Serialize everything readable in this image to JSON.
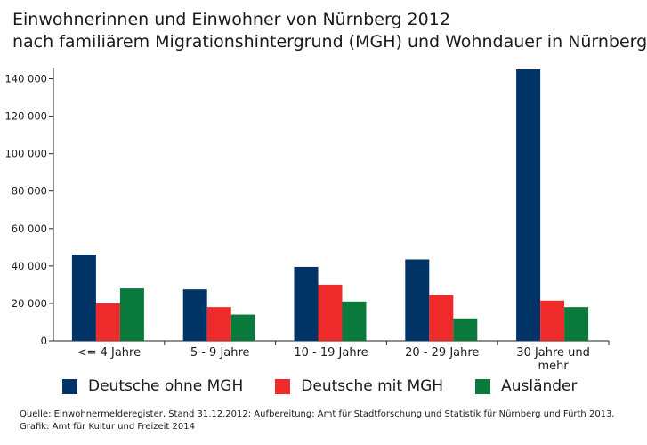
{
  "title_line1": "Einwohnerinnen und Einwohner von Nürnberg 2012",
  "title_line2": "nach familiärem Migrationshintergrund (MGH) und Wohndauer in Nürnberg",
  "source_line1": "Quelle: Einwohnermelderegister, Stand 31.12.2012; Aufbereitung: Amt für Stadtforschung und Statistik für Nürnberg und Fürth 2013,",
  "source_line2": "Grafik: Amt für Kultur und Freizeit 2014",
  "chart_data": {
    "type": "bar",
    "title": "Einwohnerinnen und Einwohner von Nürnberg 2012 nach familiärem Migrationshintergrund (MGH) und Wohndauer in Nürnberg",
    "categories": [
      "<= 4 Jahre",
      "5 - 9 Jahre",
      "10 - 19 Jahre",
      "20 - 29 Jahre",
      "30 Jahre und mehr"
    ],
    "category_lines": [
      [
        "<= 4 Jahre"
      ],
      [
        "5 - 9 Jahre"
      ],
      [
        "10 - 19 Jahre"
      ],
      [
        "20 - 29 Jahre"
      ],
      [
        "30 Jahre und",
        "mehr"
      ]
    ],
    "series": [
      {
        "name": "Deutsche ohne MGH",
        "color": "#003366",
        "values": [
          46000,
          27500,
          39500,
          43500,
          145000
        ]
      },
      {
        "name": "Deutsche mit MGH",
        "color": "#ee2a2a",
        "values": [
          20000,
          18000,
          30000,
          24500,
          21500
        ]
      },
      {
        "name": "Ausländer",
        "color": "#0a7a3c",
        "values": [
          28000,
          14000,
          21000,
          12000,
          18000
        ]
      }
    ],
    "ylim": [
      0,
      145000
    ],
    "yticks": [
      0,
      20000,
      40000,
      60000,
      80000,
      100000,
      120000,
      140000
    ],
    "ytick_labels": [
      "0",
      "20 000",
      "40 000",
      "60 000",
      "80 000",
      "100 000",
      "120 000",
      "140 000"
    ],
    "xlabel": "",
    "ylabel": "",
    "grid": false,
    "legend_position": "bottom"
  }
}
